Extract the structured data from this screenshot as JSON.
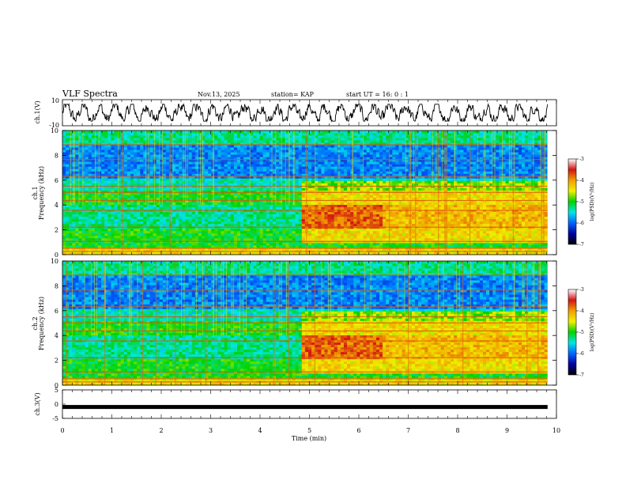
{
  "header": {
    "title": "VLF Spectra",
    "date": "Nov.13, 2025",
    "station": "station= KAP",
    "start": "start  UT =   16: 0  : 1"
  },
  "colorbar": {
    "label": "log(PSD)(V²/Hz)",
    "ticks": [
      "-3",
      "-4",
      "-5",
      "-6",
      "-7"
    ],
    "stops": [
      "#ffffff",
      "#d21414",
      "#f0a000",
      "#f0f000",
      "#00d200",
      "#00e6e6",
      "#0064ff",
      "#0000a0",
      "#000000"
    ]
  },
  "chart_data": [
    {
      "type": "line",
      "name": "ch1-waveform",
      "ylabel": "ch.1(V)",
      "ylim": [
        -10,
        10
      ],
      "yticks": [
        "10",
        "-10"
      ],
      "xlim": [
        0,
        10
      ],
      "x_extent_min": 9.82,
      "note": "noisy waveform oscillating roughly between -6 and +6 V"
    },
    {
      "type": "heatmap",
      "name": "ch1-spectrogram",
      "ylabel": "ch.1\nFrequency (kHz)",
      "ylim": [
        0,
        10
      ],
      "yticks": [
        "0",
        "2",
        "4",
        "6",
        "8",
        "10"
      ],
      "xlim": [
        0,
        10
      ],
      "zlim": [
        -7,
        -3
      ],
      "enhanced_region": {
        "t_start_min": 4.85,
        "f_low_khz": 2.2,
        "f_high_khz": 4.0
      }
    },
    {
      "type": "heatmap",
      "name": "ch2-spectrogram",
      "ylabel": "ch.2\nFrequency (kHz)",
      "ylim": [
        0,
        10
      ],
      "yticks": [
        "0",
        "2",
        "4",
        "6",
        "8",
        "10"
      ],
      "xlim": [
        0,
        10
      ],
      "zlim": [
        -7,
        -3
      ],
      "enhanced_region": {
        "t_start_min": 4.85,
        "f_low_khz": 2.2,
        "f_high_khz": 4.0
      }
    },
    {
      "type": "line",
      "name": "ch3-waveform",
      "ylabel": "ch.3(V)",
      "ylim": [
        -5,
        5
      ],
      "yticks": [
        "5",
        "0",
        "-5"
      ],
      "xlim": [
        0,
        10
      ],
      "value": -1,
      "note": "flat thick trace near -1 V"
    }
  ],
  "xaxis": {
    "label": "Time  (min)",
    "ticks": [
      "0",
      "1",
      "2",
      "3",
      "4",
      "5",
      "6",
      "7",
      "8",
      "9",
      "10"
    ]
  }
}
